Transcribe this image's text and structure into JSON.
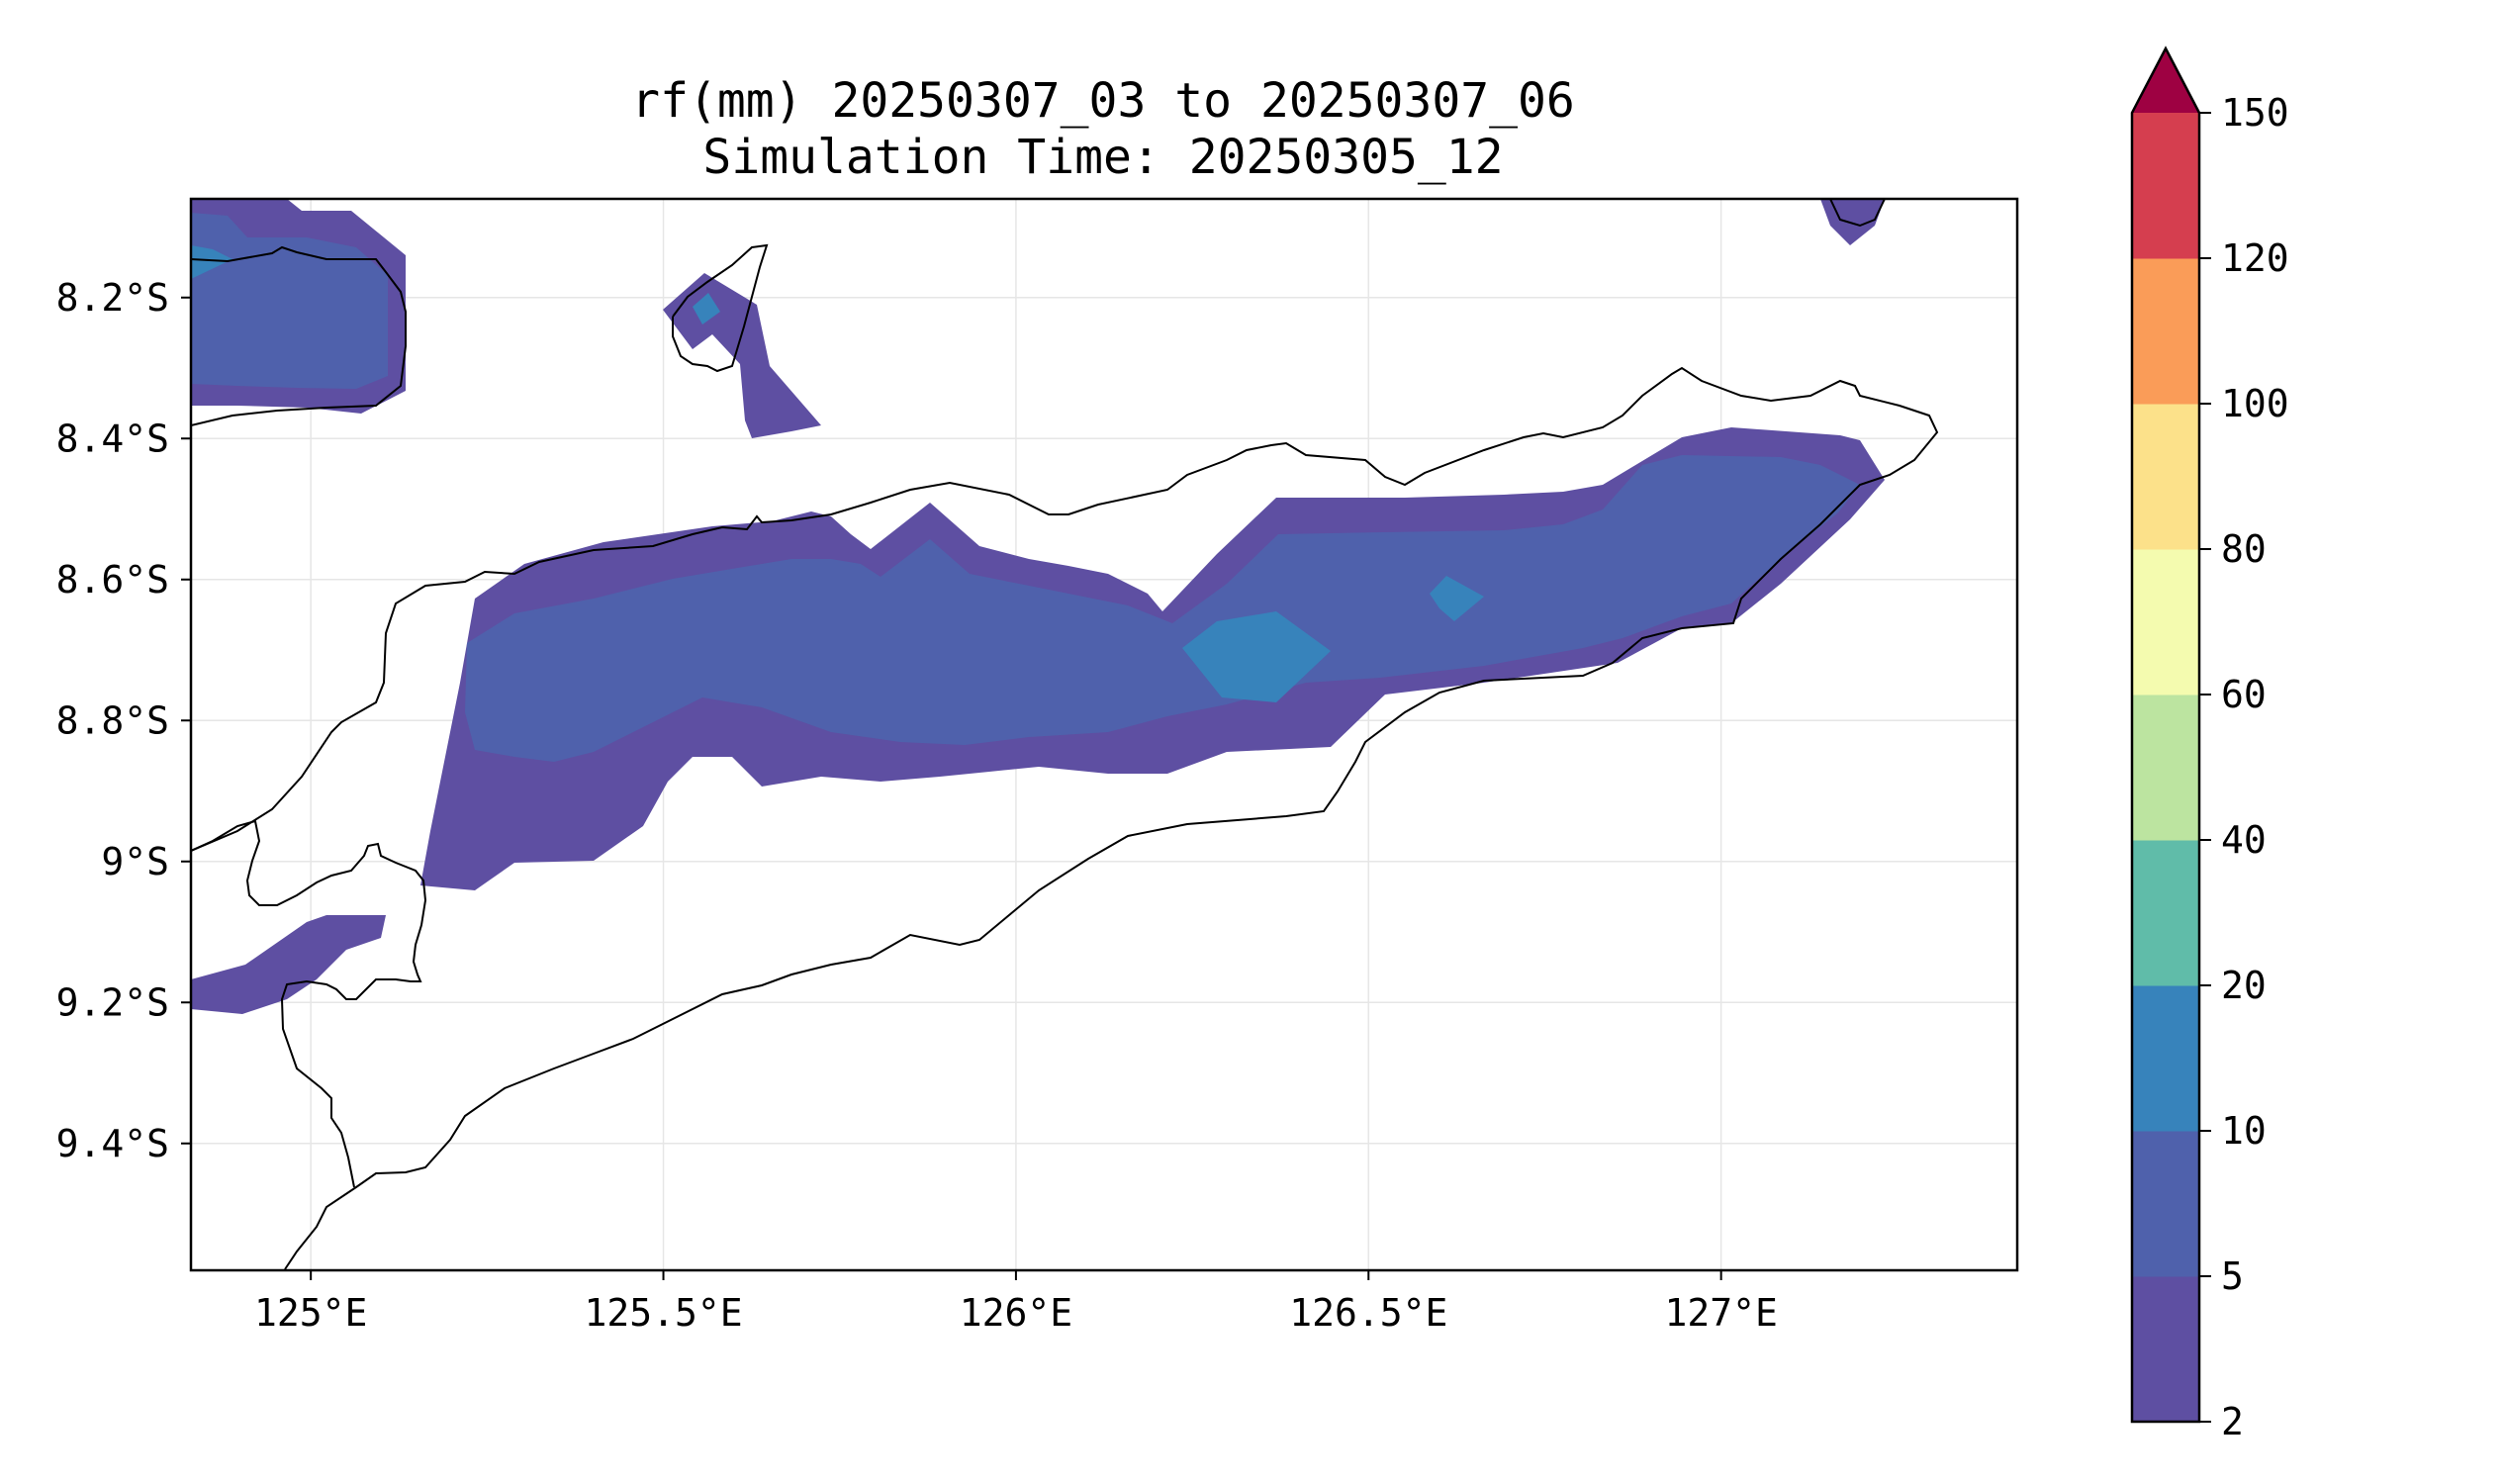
{
  "title": {
    "line1": "rf(mm) 20250307_03 to 20250307_06",
    "line2": "Simulation Time: 20250305_12"
  },
  "map": {
    "lon_range": [
      124.83,
      127.42
    ],
    "lat_range": [
      -9.58,
      -8.06
    ],
    "lon_ticks": [
      125,
      125.5,
      126,
      126.5,
      127
    ],
    "lon_tick_labels": [
      "125°E",
      "125.5°E",
      "126°E",
      "126.5°E",
      "127°E"
    ],
    "lat_ticks": [
      -8.2,
      -8.4,
      -8.6,
      -8.8,
      -9.0,
      -9.2,
      -9.4
    ],
    "lat_tick_labels": [
      "8.2°S",
      "8.4°S",
      "8.6°S",
      "8.8°S",
      "9°S",
      "9.2°S",
      "9.4°S"
    ],
    "grid": true
  },
  "colorbar": {
    "levels": [
      2,
      5,
      10,
      20,
      40,
      60,
      80,
      100,
      120,
      150
    ],
    "labels": [
      "2",
      "5",
      "10",
      "20",
      "40",
      "60",
      "80",
      "100",
      "120",
      "150"
    ],
    "colors": [
      "#5e4fa2",
      "#4f61ac",
      "#3783bb",
      "#60bca9",
      "#bce4a0",
      "#f4fbaf",
      "#fce18a",
      "#fa9c58",
      "#d53e4f"
    ],
    "extend_color": "#9e0142",
    "extend": "max"
  }
}
